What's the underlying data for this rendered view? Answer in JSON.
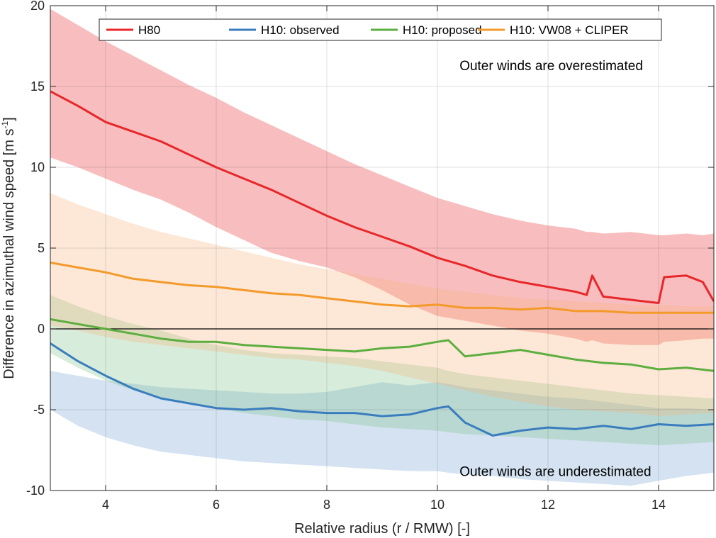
{
  "chart_data": {
    "type": "line",
    "title": "",
    "xlabel": "Relative radius (r / RMW) [-]",
    "ylabel_main": "Difference in azimuthal wind speed  [m s",
    "ylabel_sup": "-1",
    "ylabel_close": "]",
    "xlim": [
      3,
      15
    ],
    "ylim": [
      -10,
      20
    ],
    "xticks": [
      4,
      6,
      8,
      10,
      12,
      14
    ],
    "xtick_labels": [
      "4",
      "6",
      "8",
      "10",
      "12",
      "14"
    ],
    "yticks": [
      -10,
      -5,
      0,
      5,
      10,
      15,
      20
    ],
    "ytick_labels": [
      "-10",
      "-5",
      "0",
      "5",
      "10",
      "15",
      "20"
    ],
    "grid": true,
    "legend_position": "top-center",
    "annotations": [
      {
        "text": "Outer winds are overestimated",
        "x": 10.4,
        "y": 16.0
      },
      {
        "text": "Outer winds are underestimated",
        "x": 10.4,
        "y": -9.1
      }
    ],
    "series": [
      {
        "name": "H80",
        "color": "#E8272A",
        "band_color": "#E8272A",
        "x": [
          3.0,
          3.5,
          4.0,
          4.5,
          5.0,
          5.5,
          6.0,
          6.5,
          7.0,
          7.5,
          8.0,
          8.5,
          9.0,
          9.5,
          10.0,
          10.5,
          11.0,
          11.5,
          12.0,
          12.5,
          12.7,
          12.8,
          13.0,
          13.5,
          14.0,
          14.1,
          14.5,
          14.8,
          15.0
        ],
        "values": [
          14.7,
          13.8,
          12.8,
          12.2,
          11.6,
          10.8,
          10.0,
          9.3,
          8.6,
          7.8,
          7.0,
          6.3,
          5.7,
          5.1,
          4.4,
          3.9,
          3.3,
          2.9,
          2.6,
          2.3,
          2.1,
          3.3,
          2.0,
          1.8,
          1.6,
          3.2,
          3.3,
          2.9,
          1.7
        ],
        "upper": [
          19.8,
          18.8,
          17.8,
          16.9,
          16.0,
          15.1,
          14.3,
          13.4,
          12.6,
          11.8,
          11.0,
          10.2,
          9.5,
          8.8,
          8.1,
          7.6,
          7.1,
          6.7,
          6.4,
          6.2,
          6.0,
          6.0,
          5.9,
          6.0,
          5.8,
          5.8,
          5.9,
          5.8,
          5.9
        ],
        "lower": [
          10.6,
          10.0,
          9.3,
          8.6,
          8.0,
          7.2,
          6.3,
          5.5,
          4.7,
          4.2,
          3.8,
          3.2,
          2.4,
          1.5,
          0.8,
          0.5,
          0.2,
          -0.1,
          -0.3,
          -0.6,
          -0.8,
          -0.7,
          -0.9,
          -1.0,
          -1.0,
          -0.8,
          -0.7,
          -0.6,
          -0.6
        ]
      },
      {
        "name": "H10: observed",
        "color": "#3A7DBE",
        "band_color": "#6FA0D2",
        "x": [
          3.0,
          3.5,
          4.0,
          4.5,
          5.0,
          5.5,
          6.0,
          6.5,
          7.0,
          7.5,
          8.0,
          8.5,
          9.0,
          9.5,
          10.0,
          10.2,
          10.5,
          11.0,
          11.5,
          12.0,
          12.5,
          13.0,
          13.5,
          14.0,
          14.5,
          15.0
        ],
        "values": [
          -0.9,
          -2.0,
          -2.9,
          -3.7,
          -4.3,
          -4.6,
          -4.9,
          -5.0,
          -4.9,
          -5.1,
          -5.2,
          -5.2,
          -5.4,
          -5.3,
          -4.9,
          -4.8,
          -5.8,
          -6.6,
          -6.3,
          -6.1,
          -6.2,
          -6.0,
          -6.2,
          -5.9,
          -6.0,
          -5.9
        ],
        "upper": [
          -2.6,
          -2.9,
          -3.2,
          -3.4,
          -3.6,
          -3.7,
          -3.8,
          -3.9,
          -4.0,
          -4.0,
          -3.9,
          -3.6,
          -3.3,
          -3.5,
          -3.3,
          -3.4,
          -3.6,
          -3.8,
          -4.0,
          -4.2,
          -4.3,
          -4.5,
          -4.7,
          -4.9,
          -4.9,
          -5.0
        ],
        "lower": [
          -5.0,
          -6.0,
          -6.7,
          -7.2,
          -7.6,
          -7.8,
          -8.0,
          -8.2,
          -8.3,
          -8.4,
          -8.5,
          -8.6,
          -8.7,
          -8.8,
          -8.8,
          -8.9,
          -9.0,
          -9.1,
          -9.3,
          -9.4,
          -9.5,
          -9.6,
          -9.7,
          -9.4,
          -9.1,
          -8.9
        ]
      },
      {
        "name": "H10: proposed",
        "color": "#5CAE3F",
        "band_color": "#7CC089",
        "x": [
          3.0,
          3.5,
          4.0,
          4.5,
          5.0,
          5.5,
          6.0,
          6.5,
          7.0,
          7.5,
          8.0,
          8.5,
          9.0,
          9.5,
          10.0,
          10.2,
          10.5,
          11.0,
          11.5,
          12.0,
          12.5,
          13.0,
          13.5,
          14.0,
          14.5,
          15.0
        ],
        "values": [
          0.6,
          0.3,
          0.0,
          -0.3,
          -0.6,
          -0.8,
          -0.8,
          -1.0,
          -1.1,
          -1.2,
          -1.3,
          -1.4,
          -1.2,
          -1.1,
          -0.8,
          -0.7,
          -1.7,
          -1.5,
          -1.3,
          -1.6,
          -1.9,
          -2.1,
          -2.2,
          -2.5,
          -2.4,
          -2.6
        ],
        "upper": [
          2.1,
          1.4,
          0.8,
          0.3,
          -0.1,
          -0.6,
          -1.0,
          -1.3,
          -1.5,
          -1.6,
          -1.7,
          -1.8,
          -2.0,
          -2.2,
          -2.4,
          -2.6,
          -2.8,
          -3.0,
          -3.2,
          -3.4,
          -3.6,
          -3.8,
          -4.0,
          -4.1,
          -4.2,
          -4.3
        ],
        "lower": [
          -1.5,
          -2.4,
          -3.2,
          -3.8,
          -4.3,
          -4.6,
          -4.9,
          -5.2,
          -5.4,
          -5.6,
          -5.7,
          -5.9,
          -6.1,
          -6.2,
          -6.3,
          -6.4,
          -6.5,
          -6.6,
          -6.7,
          -6.8,
          -6.9,
          -7.0,
          -7.1,
          -7.2,
          -7.1,
          -7.0
        ]
      },
      {
        "name": "H10: VW08 + CLIPER",
        "color": "#F39A2B",
        "band_color": "#F8B47A",
        "x": [
          3.0,
          3.5,
          4.0,
          4.5,
          5.0,
          5.5,
          6.0,
          6.5,
          7.0,
          7.5,
          8.0,
          8.5,
          9.0,
          9.5,
          10.0,
          10.5,
          11.0,
          11.5,
          12.0,
          12.5,
          13.0,
          13.5,
          14.0,
          14.5,
          15.0
        ],
        "values": [
          4.1,
          3.8,
          3.5,
          3.1,
          2.9,
          2.7,
          2.6,
          2.4,
          2.2,
          2.1,
          1.9,
          1.7,
          1.5,
          1.4,
          1.5,
          1.3,
          1.3,
          1.2,
          1.3,
          1.1,
          1.1,
          1.0,
          1.0,
          1.0,
          1.0
        ],
        "upper": [
          8.4,
          7.7,
          7.1,
          6.5,
          6.0,
          5.6,
          5.2,
          4.8,
          4.4,
          4.0,
          3.7,
          3.4,
          3.1,
          2.8,
          2.5,
          2.3,
          2.1,
          1.9,
          1.8,
          1.7,
          1.6,
          1.5,
          1.5,
          1.4,
          1.4
        ],
        "lower": [
          0.2,
          -0.1,
          -0.5,
          -0.8,
          -1.0,
          -1.2,
          -1.4,
          -1.6,
          -1.8,
          -1.9,
          -2.1,
          -2.3,
          -2.6,
          -3.0,
          -3.4,
          -3.8,
          -4.2,
          -4.5,
          -4.8,
          -5.0,
          -5.1,
          -5.2,
          -5.4,
          -5.3,
          -5.2
        ]
      }
    ]
  }
}
